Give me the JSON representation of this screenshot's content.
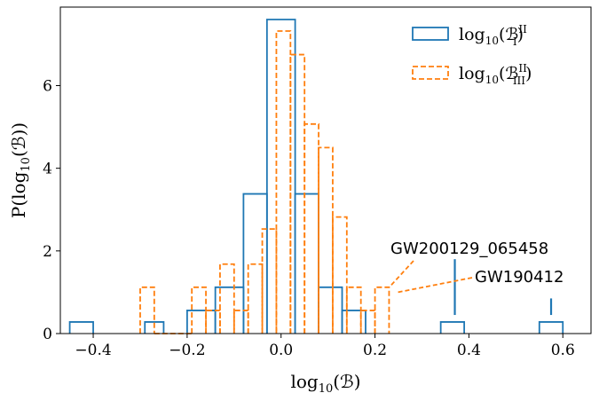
{
  "chart_data": {
    "type": "histogram",
    "xlabel": "log10(B)",
    "ylabel": "P(log10(B))",
    "xlim": [
      -0.47,
      0.66
    ],
    "ylim": [
      0,
      7.9
    ],
    "x_ticks": [
      -0.4,
      -0.2,
      0.0,
      0.2,
      0.4,
      0.6
    ],
    "x_tick_labels": [
      "−0.4",
      "−0.2",
      "0.0",
      "0.2",
      "0.4",
      "0.6"
    ],
    "y_ticks": [
      0,
      2,
      4,
      6
    ],
    "y_tick_labels": [
      "0",
      "2",
      "4",
      "6"
    ],
    "grid": false,
    "legend_position": "top-right",
    "series": [
      {
        "name": "log10(B^II_I)",
        "legend_main": "log",
        "legend_sub": "10",
        "legend_paren": "(ℬ",
        "legend_sup": "II",
        "legend_lower": "I",
        "legend_close": ")",
        "color": "#1f77b4",
        "style": "solid",
        "bins": [
          {
            "x0": -0.45,
            "x1": -0.4,
            "y": 0.28
          },
          {
            "x0": -0.29,
            "x1": -0.25,
            "y": 0.28
          },
          {
            "x0": -0.2,
            "x1": -0.14,
            "y": 0.56
          },
          {
            "x0": -0.14,
            "x1": -0.08,
            "y": 1.12
          },
          {
            "x0": -0.08,
            "x1": -0.03,
            "y": 3.38
          },
          {
            "x0": -0.03,
            "x1": 0.03,
            "y": 7.6
          },
          {
            "x0": 0.03,
            "x1": 0.08,
            "y": 3.38
          },
          {
            "x0": 0.08,
            "x1": 0.13,
            "y": 1.12
          },
          {
            "x0": 0.13,
            "x1": 0.18,
            "y": 0.56
          },
          {
            "x0": 0.34,
            "x1": 0.39,
            "y": 0.28
          },
          {
            "x0": 0.55,
            "x1": 0.6,
            "y": 0.28
          }
        ]
      },
      {
        "name": "log10(B^II_III)",
        "legend_main": "log",
        "legend_sub": "10",
        "legend_paren": "(ℬ",
        "legend_sup": "II",
        "legend_lower": "III",
        "legend_close": ")",
        "color": "#ff7f0e",
        "style": "dashed",
        "bins": [
          {
            "x0": -0.3,
            "x1": -0.27,
            "y": 1.12
          },
          {
            "x0": -0.27,
            "x1": -0.19,
            "y": 0.0
          },
          {
            "x0": -0.19,
            "x1": -0.16,
            "y": 1.12
          },
          {
            "x0": -0.16,
            "x1": -0.13,
            "y": 0.56
          },
          {
            "x0": -0.13,
            "x1": -0.1,
            "y": 1.68
          },
          {
            "x0": -0.1,
            "x1": -0.07,
            "y": 0.56
          },
          {
            "x0": -0.07,
            "x1": -0.04,
            "y": 1.68
          },
          {
            "x0": -0.04,
            "x1": -0.01,
            "y": 2.53
          },
          {
            "x0": -0.01,
            "x1": 0.02,
            "y": 7.32
          },
          {
            "x0": 0.02,
            "x1": 0.05,
            "y": 6.75
          },
          {
            "x0": 0.05,
            "x1": 0.08,
            "y": 5.07
          },
          {
            "x0": 0.08,
            "x1": 0.11,
            "y": 4.5
          },
          {
            "x0": 0.11,
            "x1": 0.14,
            "y": 2.82
          },
          {
            "x0": 0.14,
            "x1": 0.17,
            "y": 1.12
          },
          {
            "x0": 0.17,
            "x1": 0.2,
            "y": 0.56
          },
          {
            "x0": 0.2,
            "x1": 0.23,
            "y": 1.12
          }
        ]
      }
    ],
    "annotations": [
      {
        "text": "GW200129_065458",
        "point_x": 0.23,
        "point_y": 1.12,
        "marker_x": 0.37,
        "marker_y0": 0.45,
        "marker_y1": 1.8
      },
      {
        "text": "GW190412",
        "point_x": 0.24,
        "point_y": 0.95,
        "marker_x": 0.575,
        "marker_y0": 0.45,
        "marker_y1": 0.85
      }
    ]
  }
}
